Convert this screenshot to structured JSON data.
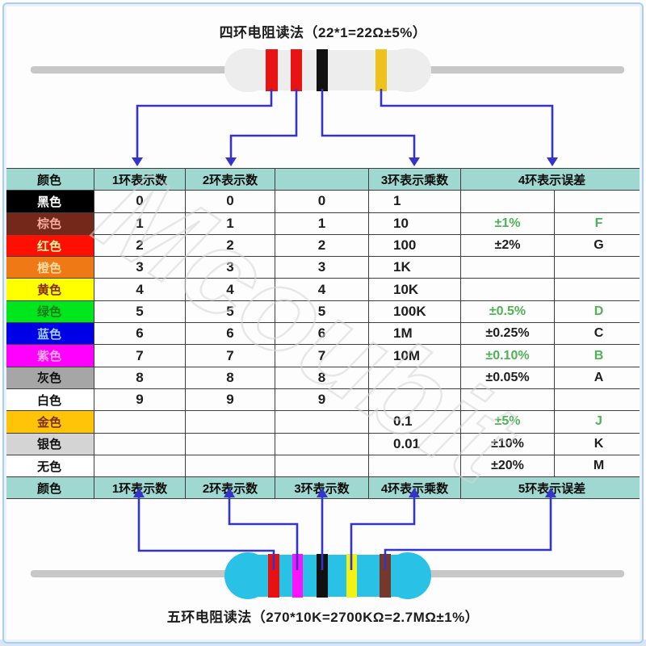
{
  "top": {
    "title": "四环电阻读法（22*1=22Ω±5%）",
    "band_colors": [
      "#e81313",
      "#e81313",
      "#111111",
      "#efc21c"
    ],
    "body_color": "#ededee",
    "lead_color": "#c7c7c7"
  },
  "bottom": {
    "caption": "五环电阻读法（270*10K=2700KΩ=2.7MΩ±1%）",
    "band_colors": [
      "#e81111",
      "#fa14fa",
      "#111111",
      "#f2f213",
      "#76382a"
    ],
    "body_color": "#2ac1e6",
    "lead_color": "#c7c7c7"
  },
  "watermark": "Mcoubit",
  "theme": {
    "header_bg": "#9fd8d1",
    "arrow_color": "#3434c9",
    "grid_color": "#3e3e3e",
    "green_text": "#4fb254",
    "frame_color": "#aecdec"
  },
  "table": {
    "header4": [
      "颜色",
      "1环表示数",
      "2环表示数",
      "",
      "3环表示乘数",
      "4环表示误差"
    ],
    "header5": [
      "颜色",
      "1环表示数",
      "2环表示数",
      "3环表示数",
      "4环表示乘数",
      "5环表示误差"
    ],
    "rows": [
      {
        "name": "黑色",
        "bg": "#000000",
        "fg": "#ffffff",
        "d1": "0",
        "d2": "0",
        "d3": "0",
        "mult": "1",
        "tol": "",
        "code": "",
        "green": false
      },
      {
        "name": "棕色",
        "bg": "#73281a",
        "fg": "#f2a99c",
        "d1": "1",
        "d2": "1",
        "d3": "1",
        "mult": "10",
        "tol": "±1%",
        "code": "F",
        "green": true
      },
      {
        "name": "红色",
        "bg": "#ff0f00",
        "fg": "#fff3a6",
        "d1": "2",
        "d2": "2",
        "d3": "2",
        "mult": "100",
        "tol": "±2%",
        "code": "G",
        "green": false
      },
      {
        "name": "橙色",
        "bg": "#ef7a15",
        "fg": "#ffd9a0",
        "d1": "3",
        "d2": "3",
        "d3": "3",
        "mult": "1K",
        "tol": "",
        "code": "",
        "green": false
      },
      {
        "name": "黄色",
        "bg": "#ffff00",
        "fg": "#8a2b08",
        "d1": "4",
        "d2": "4",
        "d3": "4",
        "mult": "10K",
        "tol": "",
        "code": "",
        "green": false
      },
      {
        "name": "绿色",
        "bg": "#00e61c",
        "fg": "#1b7a1b",
        "d1": "5",
        "d2": "5",
        "d3": "5",
        "mult": "100K",
        "tol": "±0.5%",
        "code": "D",
        "green": true
      },
      {
        "name": "蓝色",
        "bg": "#0000e6",
        "fg": "#9ecbff",
        "d1": "6",
        "d2": "6",
        "d3": "6",
        "mult": "1M",
        "tol": "±0.25%",
        "code": "C",
        "green": false
      },
      {
        "name": "紫色",
        "bg": "#ff00ff",
        "fg": "#ffa8f0",
        "d1": "7",
        "d2": "7",
        "d3": "7",
        "mult": "10M",
        "tol": "±0.10%",
        "code": "B",
        "green": true
      },
      {
        "name": "灰色",
        "bg": "#a6a6a6",
        "fg": "#111111",
        "d1": "8",
        "d2": "8",
        "d3": "8",
        "mult": "",
        "tol": "±0.05%",
        "code": "A",
        "green": false
      },
      {
        "name": "白色",
        "bg": "#ffffff",
        "fg": "#111111",
        "d1": "9",
        "d2": "9",
        "d3": "9",
        "mult": "",
        "tol": "",
        "code": "",
        "green": false
      },
      {
        "name": "金色",
        "bg": "#ffc408",
        "fg": "#7a2f00",
        "d1": "",
        "d2": "",
        "d3": "",
        "mult": "0.1",
        "tol": "±5%",
        "code": "J",
        "green": true
      },
      {
        "name": "银色",
        "bg": "#d4d4d4",
        "fg": "#111111",
        "d1": "",
        "d2": "",
        "d3": "",
        "mult": "0.01",
        "tol": "±10%",
        "code": "K",
        "green": false
      },
      {
        "name": "无色",
        "bg": "#ffffff",
        "fg": "#111111",
        "d1": "",
        "d2": "",
        "d3": "",
        "mult": "",
        "tol": "±20%",
        "code": "M",
        "green": false
      }
    ]
  }
}
